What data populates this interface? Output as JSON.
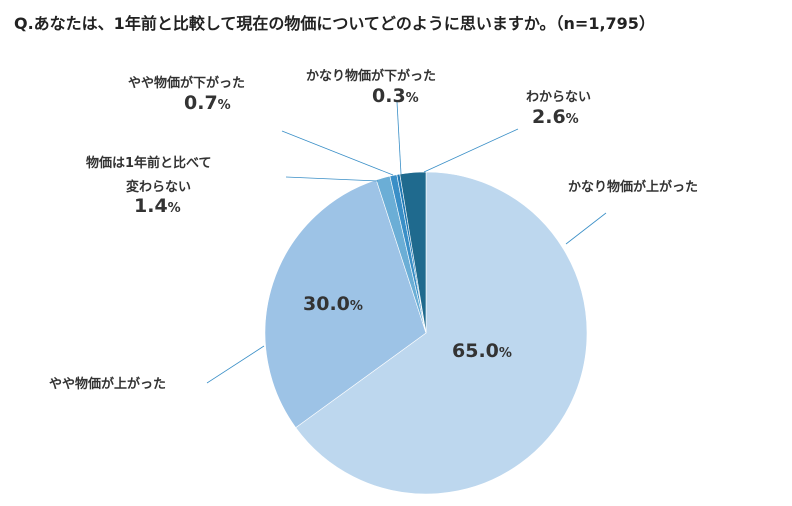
{
  "chart_data": {
    "type": "pie",
    "title": "Q.あなたは、1年前と比較して現在の物価についてどのように思いますか。（n=1,795）",
    "unit": "%",
    "slices": [
      {
        "label": "かなり物価が上がった",
        "value": 65.0,
        "color": "#bdd7ee"
      },
      {
        "label": "やや物価が上がった",
        "value": 30.0,
        "color": "#9dc3e6"
      },
      {
        "label": "物価は1年前と比べて変わらない",
        "value": 1.4,
        "color": "#6baed6"
      },
      {
        "label": "やや物価が下がった",
        "value": 0.7,
        "color": "#3a8fc7"
      },
      {
        "label": "かなり物価が下がった",
        "value": 0.3,
        "color": "#2079b4"
      },
      {
        "label": "わからない",
        "value": 2.6,
        "color": "#1f6a8e"
      }
    ],
    "display": {
      "s0": {
        "value": "65.0"
      },
      "s1": {
        "value": "30.0"
      },
      "s2": {
        "name1": "物価は1年前と比べて",
        "name2": "変わらない",
        "value": "1.4"
      },
      "s3": {
        "name": "やや物価が下がった",
        "value": "0.7"
      },
      "s4": {
        "name": "かなり物価が下がった",
        "value": "0.3"
      },
      "s5": {
        "name": "わからない",
        "value": "2.6"
      },
      "s0_name": "かなり物価が上がった",
      "s1_name": "やや物価が上がった"
    }
  }
}
